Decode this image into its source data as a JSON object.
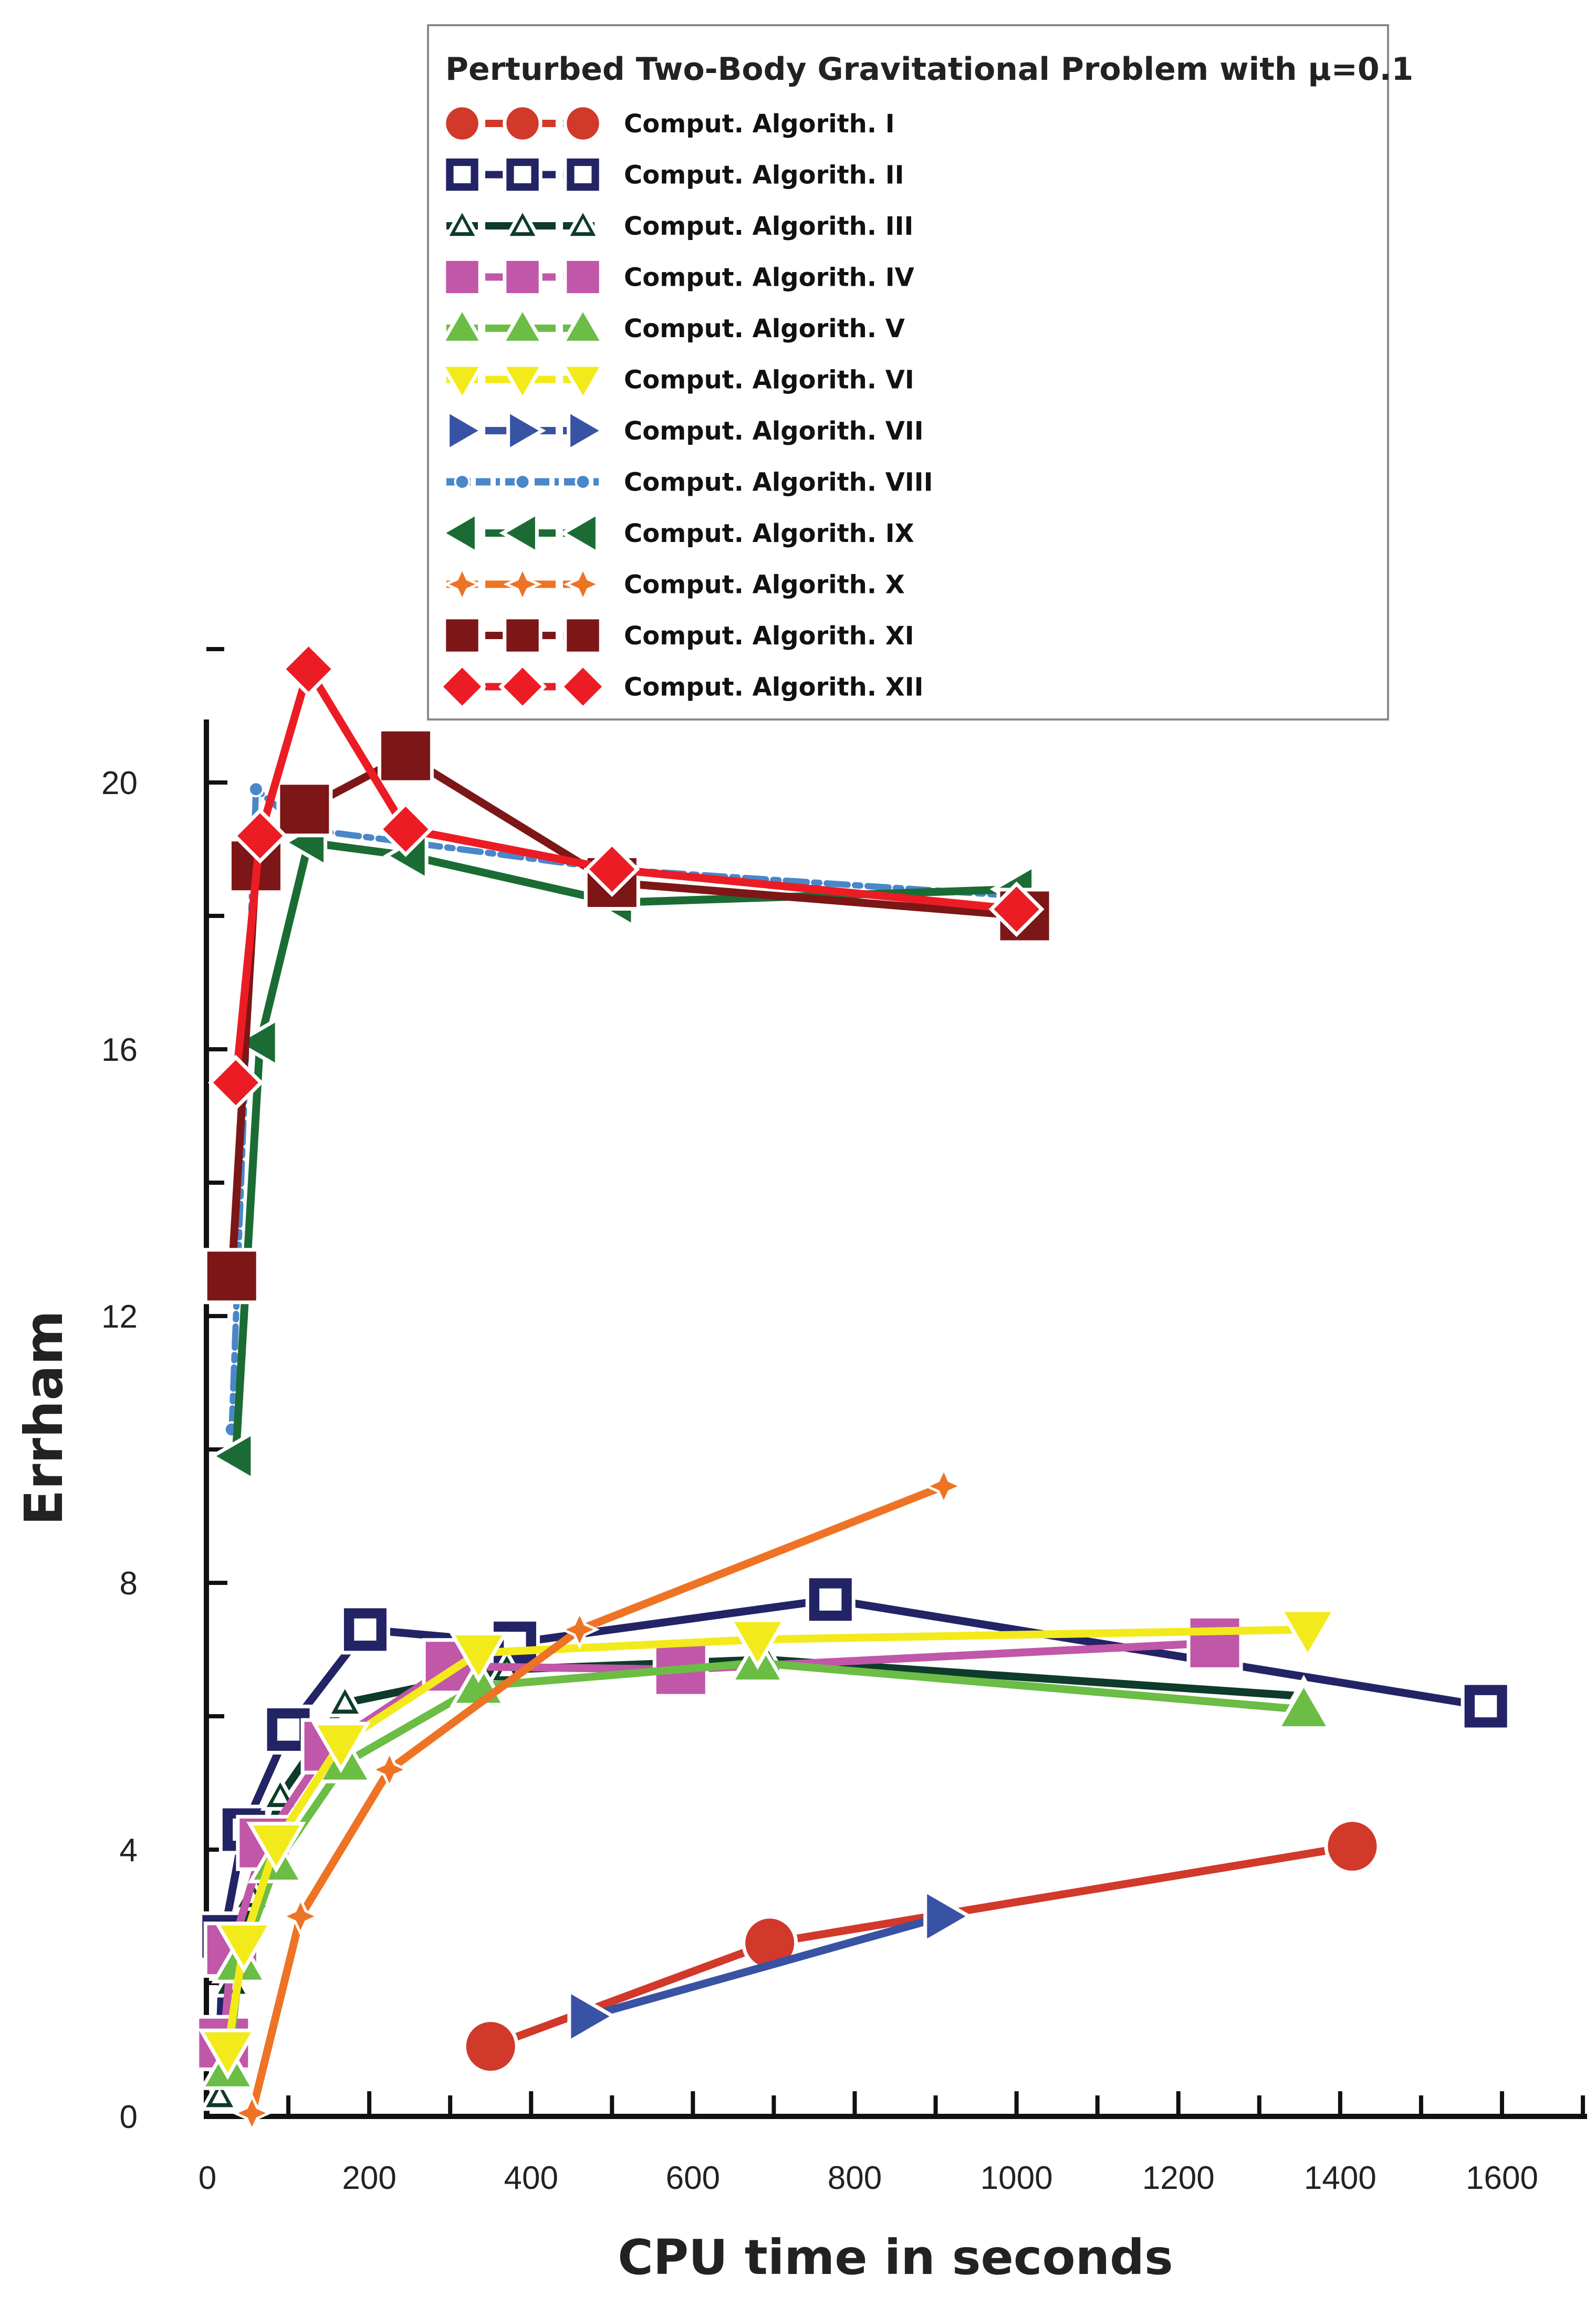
{
  "chart_data": {
    "type": "line",
    "title": "Perturbed Two-Body Gravitational Problem with μ=0.1",
    "xlabel": "CPU time in seconds",
    "ylabel": "Errham",
    "xlim": [
      0,
      1700
    ],
    "ylim": [
      0,
      23
    ],
    "x_ticks": [
      "0",
      "200",
      "400",
      "600",
      "800",
      "1000",
      "1200",
      "1400",
      "1600"
    ],
    "y_ticks": [
      "0",
      "4",
      "8",
      "12",
      "16",
      "20"
    ],
    "legend_position": "top",
    "series": [
      {
        "name": "Comput. Algorith. I",
        "color": "#d1392b",
        "marker": "circle",
        "dash": "solid",
        "points": [
          [
            350,
            1.05
          ],
          [
            695,
            2.6
          ],
          [
            1415,
            4.05
          ]
        ]
      },
      {
        "name": "Comput. Algorith. II",
        "color": "#232465",
        "marker": "square-open",
        "dash": "solid",
        "points": [
          [
            15,
            1.1
          ],
          [
            20,
            2.7
          ],
          [
            45,
            4.3
          ],
          [
            100,
            5.8
          ],
          [
            195,
            7.3
          ],
          [
            380,
            7.1
          ],
          [
            770,
            7.75
          ],
          [
            1580,
            6.15
          ]
        ]
      },
      {
        "name": "Comput. Algorith. III",
        "color": "#0e3b2a",
        "marker": "triangle-open",
        "dash": "solid",
        "points": [
          [
            15,
            0.3
          ],
          [
            30,
            2.0
          ],
          [
            55,
            3.3
          ],
          [
            90,
            4.8
          ],
          [
            170,
            6.2
          ],
          [
            370,
            6.7
          ],
          [
            690,
            6.85
          ],
          [
            1355,
            6.3
          ]
        ]
      },
      {
        "name": "Comput. Algorith. IV",
        "color": "#c157a8",
        "marker": "square",
        "dash": "solid",
        "points": [
          [
            20,
            1.1
          ],
          [
            30,
            2.5
          ],
          [
            70,
            4.1
          ],
          [
            150,
            5.55
          ],
          [
            300,
            6.75
          ],
          [
            585,
            6.7
          ],
          [
            1245,
            7.1
          ]
        ]
      },
      {
        "name": "Comput. Algorith. V",
        "color": "#6bbd45",
        "marker": "triangle-up",
        "dash": "solid",
        "points": [
          [
            25,
            0.7
          ],
          [
            40,
            2.3
          ],
          [
            85,
            3.8
          ],
          [
            170,
            5.3
          ],
          [
            335,
            6.45
          ],
          [
            680,
            6.8
          ],
          [
            1355,
            6.1
          ]
        ]
      },
      {
        "name": "Comput. Algorith. VI",
        "color": "#f3ea1c",
        "marker": "triangle-down",
        "dash": "solid",
        "points": [
          [
            25,
            1.0
          ],
          [
            45,
            2.6
          ],
          [
            85,
            4.1
          ],
          [
            165,
            5.6
          ],
          [
            335,
            6.95
          ],
          [
            680,
            7.15
          ],
          [
            1360,
            7.3
          ]
        ]
      },
      {
        "name": "Comput. Algorith. VII",
        "color": "#3852a4",
        "marker": "triangle-right",
        "dash": "solid",
        "points": [
          [
            470,
            1.5
          ],
          [
            910,
            3.0
          ]
        ]
      },
      {
        "name": "Comput. Algorith. VIII",
        "color": "#4a87c9",
        "marker": "circle-small",
        "dash": "dashdot",
        "points": [
          [
            30,
            10.3
          ],
          [
            60,
            19.9
          ],
          [
            120,
            19.3
          ],
          [
            250,
            19.1
          ],
          [
            500,
            18.7
          ],
          [
            1000,
            18.3
          ]
        ]
      },
      {
        "name": "Comput. Algorith. IX",
        "color": "#1b6c34",
        "marker": "triangle-left",
        "dash": "solid",
        "points": [
          [
            35,
            9.9
          ],
          [
            65,
            16.1
          ],
          [
            125,
            19.1
          ],
          [
            250,
            18.9
          ],
          [
            505,
            18.2
          ],
          [
            1000,
            18.4
          ]
        ]
      },
      {
        "name": "Comput. Algorith. X",
        "color": "#ee7325",
        "marker": "star4",
        "dash": "solid",
        "points": [
          [
            55,
            0.05
          ],
          [
            115,
            3.0
          ],
          [
            225,
            5.2
          ],
          [
            460,
            7.3
          ],
          [
            910,
            9.45
          ]
        ]
      },
      {
        "name": "Comput. Algorith. XI",
        "color": "#7d1616",
        "marker": "square",
        "dash": "solid",
        "points": [
          [
            30,
            12.6
          ],
          [
            60,
            18.75
          ],
          [
            120,
            19.6
          ],
          [
            245,
            20.4
          ],
          [
            500,
            18.5
          ],
          [
            1010,
            18.0
          ]
        ]
      },
      {
        "name": "Comput. Algorith. XII",
        "color": "#ec1c24",
        "marker": "diamond",
        "dash": "solid",
        "points": [
          [
            35,
            15.5
          ],
          [
            65,
            19.2
          ],
          [
            125,
            21.7
          ],
          [
            245,
            19.3
          ],
          [
            500,
            18.7
          ],
          [
            1000,
            18.1
          ]
        ]
      }
    ]
  }
}
